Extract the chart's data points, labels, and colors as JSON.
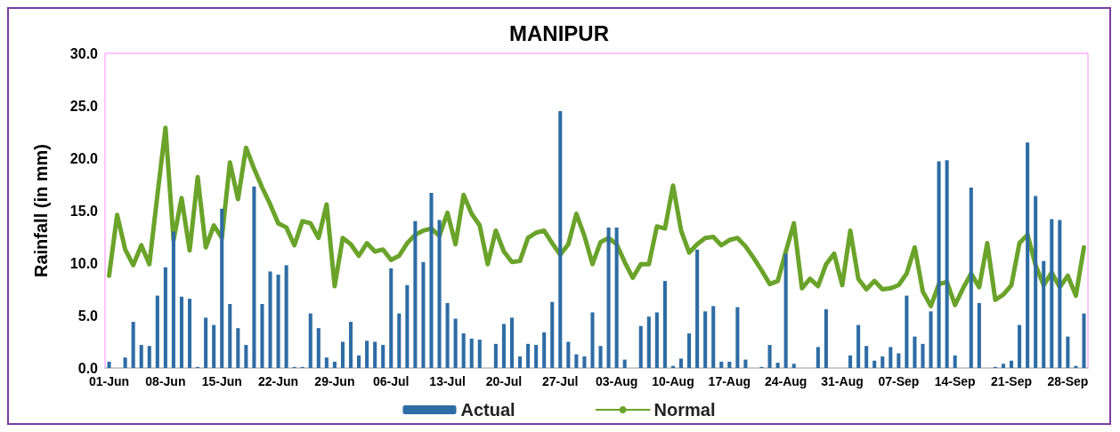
{
  "chart_data": {
    "type": "bar",
    "title": "MANIPUR",
    "ylabel": "Rainfall (in mm)",
    "categories": [
      "01-Jun",
      null,
      null,
      null,
      null,
      null,
      null,
      "08-Jun",
      null,
      null,
      null,
      null,
      null,
      null,
      "15-Jun",
      null,
      null,
      null,
      null,
      null,
      null,
      "22-Jun",
      null,
      null,
      null,
      null,
      null,
      null,
      "29-Jun",
      null,
      null,
      null,
      null,
      null,
      null,
      "06-Jul",
      null,
      null,
      null,
      null,
      null,
      null,
      "13-Jul",
      null,
      null,
      null,
      null,
      null,
      null,
      "20-Jul",
      null,
      null,
      null,
      null,
      null,
      null,
      "27-Jul",
      null,
      null,
      null,
      null,
      null,
      null,
      "03-Aug",
      null,
      null,
      null,
      null,
      null,
      null,
      "10-Aug",
      null,
      null,
      null,
      null,
      null,
      null,
      "17-Aug",
      null,
      null,
      null,
      null,
      null,
      null,
      "24-Aug",
      null,
      null,
      null,
      null,
      null,
      null,
      "31-Aug",
      null,
      null,
      null,
      null,
      null,
      null,
      "07-Sep",
      null,
      null,
      null,
      null,
      null,
      null,
      "14-Sep",
      null,
      null,
      null,
      null,
      null,
      null,
      "21-Sep",
      null,
      null,
      null,
      null,
      null,
      null,
      "28-Sep",
      null,
      null
    ],
    "series": [
      {
        "name": "Actual",
        "color": "#2e6ca4",
        "values": [
          0.6,
          0,
          1.0,
          4.4,
          2.2,
          2.1,
          6.9,
          9.6,
          13.0,
          6.8,
          6.6,
          0.1,
          4.8,
          4.1,
          15.2,
          6.1,
          3.8,
          2.2,
          17.3,
          6.1,
          9.2,
          8.9,
          9.8,
          0.1,
          0.1,
          5.2,
          3.8,
          1.0,
          0.6,
          2.5,
          4.4,
          1.2,
          2.6,
          2.5,
          2.2,
          9.5,
          5.2,
          7.9,
          14.0,
          10.1,
          16.7,
          14.1,
          6.2,
          4.7,
          3.3,
          2.8,
          2.7,
          0,
          2.3,
          4.2,
          4.8,
          1.1,
          2.3,
          2.2,
          3.4,
          6.3,
          24.5,
          2.5,
          1.3,
          1.1,
          5.3,
          2.1,
          13.4,
          13.4,
          0.8,
          0,
          4.0,
          4.9,
          5.3,
          8.3,
          0.2,
          0.9,
          3.3,
          11.3,
          5.4,
          5.9,
          0.6,
          0.6,
          5.8,
          0.8,
          0,
          0.1,
          2.2,
          0.5,
          10.9,
          0.4,
          0,
          0,
          2.0,
          5.6,
          0,
          0,
          1.2,
          4.1,
          2.1,
          0.7,
          1.1,
          2.0,
          1.4,
          6.9,
          3.0,
          2.3,
          5.4,
          19.7,
          19.8,
          1.2,
          0,
          17.2,
          6.2,
          0,
          0.1,
          0.4,
          0.7,
          4.1,
          21.5,
          16.4,
          10.2,
          14.2,
          14.1,
          3.0,
          0.2,
          5.2
        ]
      },
      {
        "name": "Normal",
        "type": "line",
        "color": "#6aa32a",
        "values": [
          8.8,
          14.6,
          11.3,
          9.8,
          11.7,
          9.9,
          16.5,
          22.9,
          12.2,
          16.2,
          11.2,
          18.2,
          11.5,
          13.6,
          12.4,
          19.6,
          16.1,
          21.0,
          19.0,
          17.2,
          15.6,
          13.8,
          13.4,
          11.7,
          14.0,
          13.8,
          12.4,
          15.6,
          7.8,
          12.4,
          11.8,
          10.7,
          11.9,
          11.1,
          11.3,
          10.3,
          10.7,
          11.9,
          12.7,
          13.1,
          13.3,
          12.6,
          14.8,
          11.8,
          16.5,
          14.7,
          13.6,
          9.9,
          13.1,
          11.1,
          10.1,
          10.2,
          12.4,
          12.9,
          13.1,
          11.9,
          10.8,
          11.8,
          14.7,
          12.6,
          9.9,
          12.0,
          12.4,
          11.8,
          10.1,
          8.6,
          9.9,
          9.9,
          13.5,
          13.3,
          17.4,
          13.1,
          11.0,
          11.8,
          12.4,
          12.5,
          11.7,
          12.2,
          12.4,
          11.6,
          10.5,
          9.3,
          8.0,
          8.3,
          11.1,
          13.8,
          7.6,
          8.5,
          7.8,
          9.9,
          10.9,
          7.9,
          13.1,
          8.5,
          7.5,
          8.3,
          7.5,
          7.6,
          7.9,
          9.0,
          11.5,
          7.3,
          5.9,
          8.0,
          8.2,
          6.0,
          7.6,
          9.0,
          7.7,
          11.9,
          6.5,
          7.0,
          7.9,
          11.9,
          12.7,
          9.8,
          7.9,
          9.1,
          7.7,
          8.8,
          6.9,
          11.5
        ]
      }
    ],
    "ylim": [
      0,
      30
    ],
    "yticks": [
      {
        "value": 0,
        "label": "0.0"
      },
      {
        "value": 5,
        "label": "5.0"
      },
      {
        "value": 10,
        "label": "10.0"
      },
      {
        "value": 15,
        "label": "15.0"
      },
      {
        "value": 20,
        "label": "20.0"
      },
      {
        "value": 25,
        "label": "25.0"
      },
      {
        "value": 30,
        "label": "30.0"
      }
    ],
    "grid": false,
    "legend": "bottom",
    "marker": "none",
    "line_style": "solid"
  }
}
